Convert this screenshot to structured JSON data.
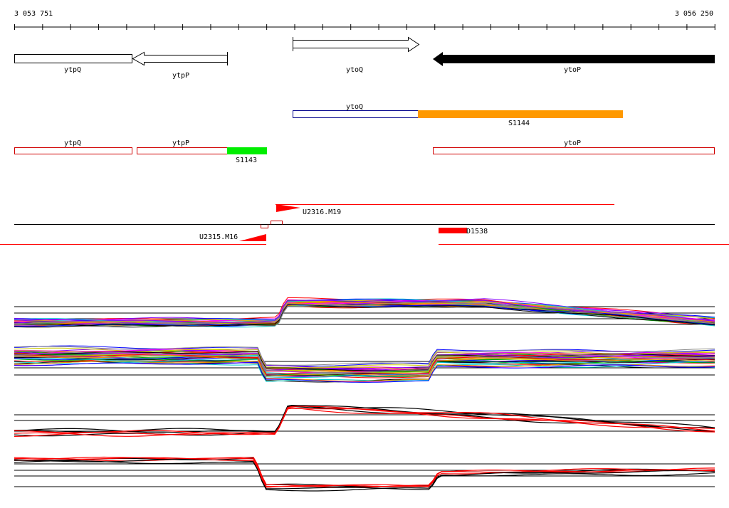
{
  "coordinates": {
    "start": "3 053 751",
    "end": "3 056 250"
  },
  "genes": [
    {
      "label": "ytpQ"
    },
    {
      "label": "ytpP"
    },
    {
      "label": "ytoQ"
    },
    {
      "label": "ytoP"
    }
  ],
  "segments_orf": [
    {
      "label": "ytoQ",
      "color": "#ffffff",
      "border": "#00008b"
    },
    {
      "label": "S1144",
      "color": "#ff9900"
    }
  ],
  "segments_red": [
    {
      "label": "ytpQ"
    },
    {
      "label": "ytpP"
    },
    {
      "label": "S1143",
      "color": "#00ee00"
    },
    {
      "label": "ytoP"
    }
  ],
  "features": [
    {
      "label": "U2316.M19",
      "color": "#ff0000"
    },
    {
      "label": "U2315.M16",
      "color": "#ff0000"
    },
    {
      "label": "D1538",
      "color": "#ff0000"
    }
  ],
  "chart_data": {
    "type": "line",
    "note_colors": [
      "#ff0000",
      "#00aa00",
      "#0000ff",
      "#ff00ff",
      "#00cccc",
      "#cccc00",
      "#ff8800",
      "#8800ff",
      "#000000",
      "#888888"
    ],
    "panels": [
      {
        "name": "",
        "style": "multicolor"
      },
      {
        "name": "",
        "style": "multicolor"
      },
      {
        "name": "",
        "style": "black-red"
      },
      {
        "name": "",
        "style": "black-red"
      }
    ]
  }
}
